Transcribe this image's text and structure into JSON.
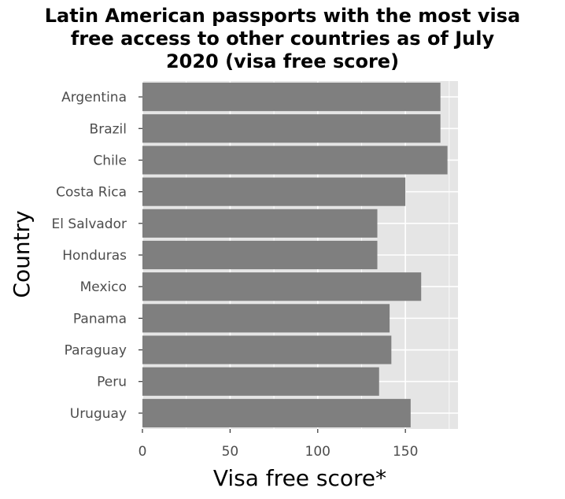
{
  "chart_data": {
    "type": "bar",
    "orientation": "horizontal",
    "title_lines": [
      "Latin American passports with the most visa",
      "free access to other countries as of July",
      "2020 (visa free score)"
    ],
    "xlabel": "Visa free score*",
    "ylabel": "Country",
    "categories": [
      "Argentina",
      "Brazil",
      "Chile",
      "Costa Rica",
      "El Salvador",
      "Honduras",
      "Mexico",
      "Panama",
      "Paraguay",
      "Peru",
      "Uruguay"
    ],
    "values": [
      170,
      170,
      174,
      150,
      134,
      134,
      159,
      141,
      142,
      135,
      153
    ],
    "xlim": [
      0,
      180
    ],
    "xticks": [
      0,
      50,
      100,
      150
    ],
    "grid": true,
    "bar_color": "#7f7f7f",
    "panel_color": "#e5e5e5",
    "grid_color": "#ffffff"
  }
}
